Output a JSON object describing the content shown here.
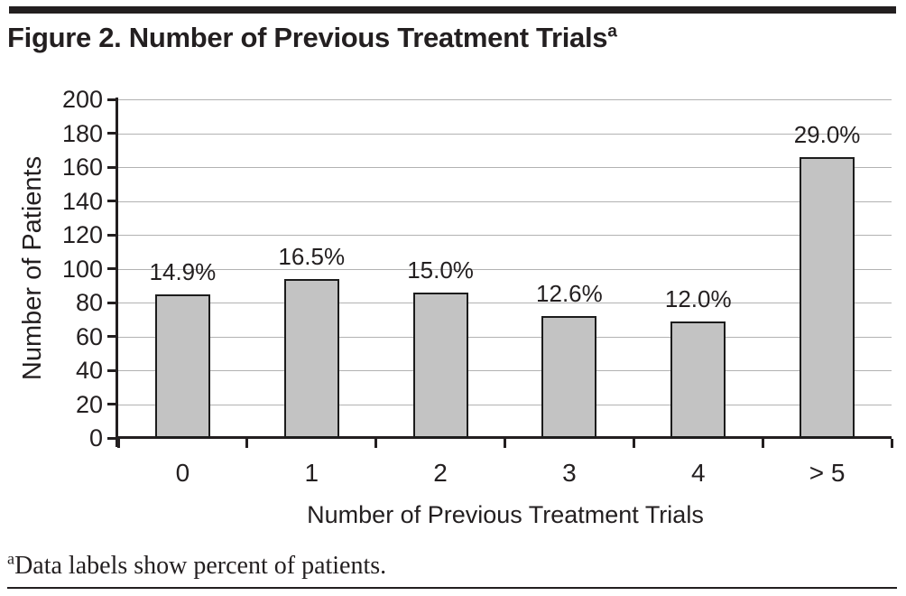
{
  "figure": {
    "title": "Figure 2. Number of Previous Treatment Trials",
    "title_superscript": "a",
    "footnote_superscript": "a",
    "footnote": "Data labels show percent of patients."
  },
  "colors": {
    "text": "#231f20",
    "bar_fill": "#c3c3c3",
    "bar_border": "#1c1c1c",
    "gridline": "#b2b2b2",
    "axis": "#231f20",
    "top_rule": "#231f20"
  },
  "chart_data": {
    "type": "bar",
    "categories": [
      "0",
      "1",
      "2",
      "3",
      "4",
      "> 5"
    ],
    "values": [
      85,
      94,
      86,
      72,
      69,
      166
    ],
    "data_labels": [
      "14.9%",
      "16.5%",
      "15.0%",
      "12.6%",
      "12.0%",
      "29.0%"
    ],
    "title": "Figure 2. Number of Previous Treatment Trials",
    "xlabel": "Number of Previous Treatment Trials",
    "ylabel": "Number of Patients",
    "ylim": [
      0,
      200
    ],
    "yticks": [
      0,
      20,
      40,
      60,
      80,
      100,
      120,
      140,
      160,
      180,
      200
    ],
    "grid": "horizontal",
    "legend": "none"
  }
}
